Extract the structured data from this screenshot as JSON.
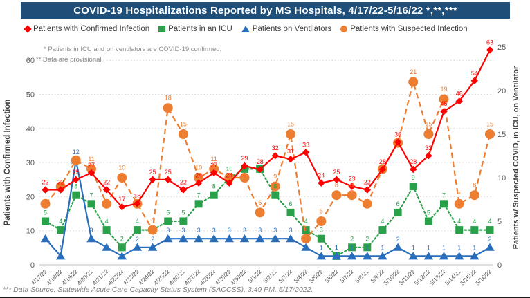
{
  "title": "COVID-19 Hospitalizations Reported by MS Hospitals, 4/17/22-5/16/22 *,**,***",
  "notes": {
    "line1": "* Patients in ICU and on ventilators are COVID-19 confirmed.",
    "line2": "** Data are provisional."
  },
  "footer": "*** Data Source: Statewide Acute Care Capacity Status System (SACCSS), 3:49 PM, 5/17/2022.",
  "legend": [
    {
      "label": "Patients with Confirmed Infection",
      "marker": "diamond",
      "color": "#FF0000"
    },
    {
      "label": "Patients in an ICU",
      "marker": "square",
      "color": "#2AA04A"
    },
    {
      "label": "Patients on Ventilators",
      "marker": "triangle",
      "color": "#2A6EBB"
    },
    {
      "label": "Patients with Suspected Infection",
      "marker": "circle",
      "color": "#ED7D31"
    }
  ],
  "left_axis": {
    "title": "Patients with Confirmed Infection",
    "ticks": [
      0,
      10,
      20,
      30,
      40,
      50,
      60
    ],
    "range": [
      0,
      65
    ]
  },
  "right_axis": {
    "title": "Patients w/ Suspected COVID, in ICU, on Ventilator",
    "ticks": [
      0,
      5,
      10,
      15,
      20,
      25
    ],
    "range": [
      0,
      25.4
    ]
  },
  "chart_data": {
    "type": "line",
    "x": [
      "4/17/22",
      "4/18/22",
      "4/19/22",
      "4/20/22",
      "4/21/22",
      "4/22/22",
      "4/23/22",
      "4/24/22",
      "4/25/22",
      "4/26/22",
      "4/27/22",
      "4/28/22",
      "4/29/22",
      "4/30/22",
      "5/1/22",
      "5/2/22",
      "5/3/22",
      "5/4/22",
      "5/5/22",
      "5/6/22",
      "5/7/22",
      "5/8/22",
      "5/9/22",
      "5/10/22",
      "5/11/22",
      "5/12/22",
      "5/13/22",
      "5/14/22",
      "5/15/22",
      "5/16/22"
    ],
    "series": [
      {
        "name": "Patients with Confirmed Infection",
        "id": "confirmed",
        "color": "#FF0000",
        "axis": "left",
        "marker": "diamond",
        "line": "solid",
        "values": [
          22,
          22,
          25,
          27,
          22,
          17,
          18,
          25,
          25,
          22,
          24,
          27,
          24,
          29,
          28,
          32,
          31,
          33,
          24,
          25,
          23,
          22,
          28,
          36,
          28,
          32,
          45,
          48,
          54,
          63
        ],
        "label_skip": []
      },
      {
        "name": "Patients in an ICU",
        "id": "icu",
        "color": "#2AA04A",
        "axis": "right",
        "marker": "square",
        "line": "dotted",
        "values": [
          5,
          4,
          8,
          7,
          4,
          2,
          4,
          4,
          5,
          5,
          7,
          8,
          10,
          11,
          11,
          8,
          6,
          4,
          3,
          1,
          2,
          2,
          4,
          6,
          9,
          5,
          7,
          4,
          4,
          4
        ],
        "label_skip": [
          7,
          13,
          14
        ]
      },
      {
        "name": "Patients on Ventilators",
        "id": "ventilators",
        "color": "#2A6EBB",
        "axis": "right",
        "marker": "triangle",
        "line": "solid",
        "values": [
          3,
          1,
          12,
          3,
          2,
          1,
          2,
          2,
          3,
          3,
          3,
          3,
          3,
          3,
          3,
          3,
          3,
          2,
          1,
          1,
          1,
          1,
          1,
          2,
          1,
          1,
          1,
          1,
          1,
          2
        ],
        "label_skip": [
          0,
          4,
          5,
          17
        ]
      },
      {
        "name": "Patients with Suspected Infection",
        "id": "suspected",
        "color": "#ED7D31",
        "axis": "right",
        "marker": "circle",
        "line": "dashed",
        "values": [
          7,
          9,
          12,
          11,
          7,
          10,
          7,
          4,
          18,
          15,
          10,
          11,
          10,
          10,
          6,
          9,
          15,
          3,
          5,
          8,
          8,
          7,
          11,
          14,
          21,
          15,
          19,
          7,
          8,
          15
        ],
        "label_skip": [
          0,
          1,
          2,
          4,
          6,
          12,
          13,
          21,
          22,
          23
        ]
      }
    ],
    "grid": "horizontal-dotted",
    "legend_position": "top"
  }
}
